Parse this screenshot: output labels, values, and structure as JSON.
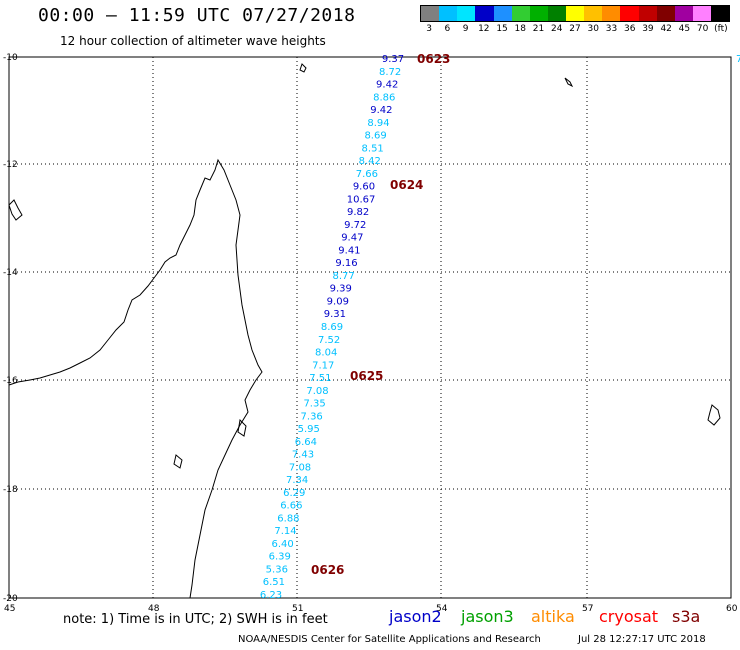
{
  "header": {
    "title": "00:00 – 11:59 UTC 07/27/2018",
    "subtitle": "12 hour collection of altimeter wave heights"
  },
  "legend": {
    "labels": [
      "3",
      "6",
      "9",
      "12",
      "15",
      "18",
      "21",
      "24",
      "27",
      "30",
      "33",
      "36",
      "39",
      "42",
      "45",
      "70",
      "(ft)"
    ],
    "colors": [
      "#808080",
      "#00c0ff",
      "#00e5ff",
      "#0000c8",
      "#1e90ff",
      "#32cd32",
      "#00b000",
      "#008000",
      "#ffff00",
      "#ffc000",
      "#ff8c00",
      "#ff0000",
      "#c00000",
      "#800000",
      "#a000a0",
      "#ff80ff",
      "#000000"
    ]
  },
  "axes": {
    "lat_ticks": [
      "-10",
      "-12",
      "-14",
      "-16",
      "-18",
      "-20"
    ],
    "lon_ticks": [
      "45",
      "48",
      "51",
      "54",
      "57",
      "60"
    ]
  },
  "points": [
    {
      "label": "9.37",
      "c": "#0000c8"
    },
    {
      "label": "8.72",
      "c": "#00c0ff"
    },
    {
      "label": "9.42",
      "c": "#0000c8"
    },
    {
      "label": "8.86",
      "c": "#00c0ff"
    },
    {
      "label": "9.42",
      "c": "#0000c8"
    },
    {
      "label": "8.94",
      "c": "#00c0ff"
    },
    {
      "label": "8.69",
      "c": "#00c0ff"
    },
    {
      "label": "8.51",
      "c": "#00c0ff"
    },
    {
      "label": "8.42",
      "c": "#00c0ff"
    },
    {
      "label": "7.66",
      "c": "#00c0ff"
    },
    {
      "label": "9.60",
      "c": "#0000c8"
    },
    {
      "label": "10.67",
      "c": "#0000c8"
    },
    {
      "label": "9.82",
      "c": "#0000c8"
    },
    {
      "label": "9.72",
      "c": "#0000c8"
    },
    {
      "label": "9.47",
      "c": "#0000c8"
    },
    {
      "label": "9.41",
      "c": "#0000c8"
    },
    {
      "label": "9.16",
      "c": "#0000c8"
    },
    {
      "label": "8.77",
      "c": "#00c0ff"
    },
    {
      "label": "9.39",
      "c": "#0000c8"
    },
    {
      "label": "9.09",
      "c": "#0000c8"
    },
    {
      "label": "9.31",
      "c": "#0000c8"
    },
    {
      "label": "8.69",
      "c": "#00c0ff"
    },
    {
      "label": "7.52",
      "c": "#00c0ff"
    },
    {
      "label": "8.04",
      "c": "#00c0ff"
    },
    {
      "label": "7.17",
      "c": "#00c0ff"
    },
    {
      "label": "7.51",
      "c": "#00c0ff"
    },
    {
      "label": "7.08",
      "c": "#00c0ff"
    },
    {
      "label": "7.35",
      "c": "#00c0ff"
    },
    {
      "label": "7.36",
      "c": "#00c0ff"
    },
    {
      "label": "5.95",
      "c": "#00c0ff"
    },
    {
      "label": "6.64",
      "c": "#00c0ff"
    },
    {
      "label": "7.43",
      "c": "#00c0ff"
    },
    {
      "label": "7.08",
      "c": "#00c0ff"
    },
    {
      "label": "7.34",
      "c": "#00c0ff"
    },
    {
      "label": "6.29",
      "c": "#00c0ff"
    },
    {
      "label": "6.66",
      "c": "#00c0ff"
    },
    {
      "label": "6.88",
      "c": "#00c0ff"
    },
    {
      "label": "7.14",
      "c": "#00c0ff"
    },
    {
      "label": "6.40",
      "c": "#00c0ff"
    },
    {
      "label": "6.39",
      "c": "#00c0ff"
    },
    {
      "label": "5.36",
      "c": "#00c0ff"
    },
    {
      "label": "6.51",
      "c": "#00c0ff"
    },
    {
      "label": "6.23",
      "c": "#00c0ff"
    }
  ],
  "time_labels": [
    {
      "label": "0623",
      "color": "#800000"
    },
    {
      "label": "0624",
      "color": "#800000"
    },
    {
      "label": "0625",
      "color": "#800000"
    },
    {
      "label": "0626",
      "color": "#800000"
    }
  ],
  "edge_mark": "7",
  "footer": {
    "note": "note: 1) Time is in UTC; 2) SWH is in feet",
    "satellites": [
      {
        "name": "jason2",
        "color": "#0000c8"
      },
      {
        "name": "jason3",
        "color": "#00a000"
      },
      {
        "name": "altika",
        "color": "#ff8c00"
      },
      {
        "name": "cryosat",
        "color": "#ff0000"
      },
      {
        "name": "s3a",
        "color": "#800000"
      }
    ],
    "credit": "NOAA/NESDIS Center for Satellite Applications and Research",
    "timestamp": "Jul 28 12:27:17 UTC 2018"
  }
}
